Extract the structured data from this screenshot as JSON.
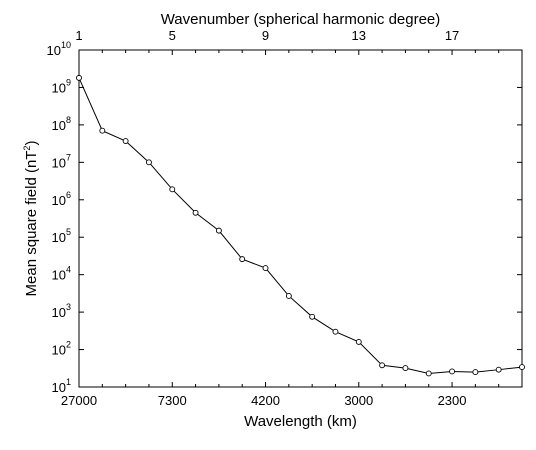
{
  "chart_data": {
    "type": "line",
    "title": "",
    "xlabel": "Wavelength (km)",
    "x2label": "Wavenumber (spherical harmonic degree)",
    "ylabel_base": "Mean square field (nT",
    "ylabel_sup": "2",
    "ylabel_end": ")",
    "x": [
      1,
      2,
      3,
      4,
      5,
      6,
      7,
      8,
      9,
      10,
      11,
      12,
      13,
      14,
      15,
      16,
      17,
      18,
      19,
      20
    ],
    "y": [
      1800000000.0,
      70000000.0,
      37000000.0,
      10000000.0,
      1900000.0,
      450000.0,
      150000.0,
      26000.0,
      15000.0,
      2700.0,
      750.0,
      300.0,
      160.0,
      38,
      32,
      23,
      26,
      25,
      29,
      34
    ],
    "xlim": [
      1,
      20
    ],
    "ylim": [
      10,
      10000000000.0
    ],
    "yscale": "log",
    "grid": false,
    "marker": "open-circle",
    "line_color": "#000000",
    "bottom_ticks": [
      {
        "n": 1,
        "label": "27000"
      },
      {
        "n": 5,
        "label": "7300"
      },
      {
        "n": 9,
        "label": "4200"
      },
      {
        "n": 13,
        "label": "3000"
      },
      {
        "n": 17,
        "label": "2300"
      }
    ],
    "top_ticks": [
      {
        "n": 1,
        "label": "1"
      },
      {
        "n": 5,
        "label": "5"
      },
      {
        "n": 9,
        "label": "9"
      },
      {
        "n": 13,
        "label": "13"
      },
      {
        "n": 17,
        "label": "17"
      }
    ],
    "y_ticks": [
      {
        "exp": 1,
        "base": "10",
        "sup": "1"
      },
      {
        "exp": 2,
        "base": "10",
        "sup": "2"
      },
      {
        "exp": 3,
        "base": "10",
        "sup": "3"
      },
      {
        "exp": 4,
        "base": "10",
        "sup": "4"
      },
      {
        "exp": 5,
        "base": "10",
        "sup": "5"
      },
      {
        "exp": 6,
        "base": "10",
        "sup": "6"
      },
      {
        "exp": 7,
        "base": "10",
        "sup": "7"
      },
      {
        "exp": 8,
        "base": "10",
        "sup": "8"
      },
      {
        "exp": 9,
        "base": "10",
        "sup": "9"
      },
      {
        "exp": 10,
        "base": "10",
        "sup": "10"
      }
    ]
  }
}
